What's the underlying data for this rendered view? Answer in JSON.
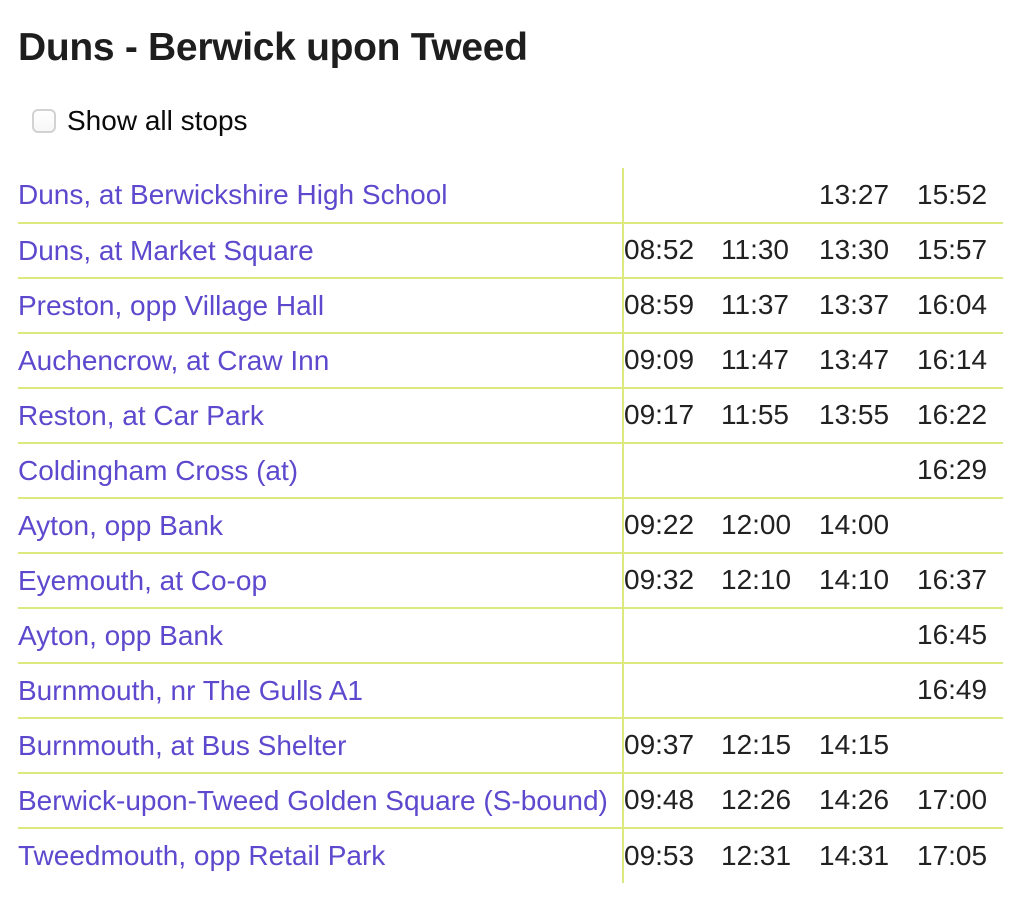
{
  "page": {
    "title": "Duns - Berwick upon Tweed"
  },
  "controls": {
    "show_all_stops_label": "Show all stops",
    "show_all_stops_checked": false
  },
  "colors": {
    "link": "#5c49cd",
    "divider": "#dce97f",
    "text": "#212121",
    "title": "#1e1e1e"
  },
  "timetable": {
    "columns": 4,
    "rows": [
      {
        "stop": "Duns, at Berwickshire High School",
        "times": [
          "",
          "",
          "13:27",
          "15:52"
        ]
      },
      {
        "stop": "Duns, at Market Square",
        "times": [
          "08:52",
          "11:30",
          "13:30",
          "15:57"
        ]
      },
      {
        "stop": "Preston, opp Village Hall",
        "times": [
          "08:59",
          "11:37",
          "13:37",
          "16:04"
        ]
      },
      {
        "stop": "Auchencrow, at Craw Inn",
        "times": [
          "09:09",
          "11:47",
          "13:47",
          "16:14"
        ]
      },
      {
        "stop": "Reston, at Car Park",
        "times": [
          "09:17",
          "11:55",
          "13:55",
          "16:22"
        ]
      },
      {
        "stop": "Coldingham Cross (at)",
        "times": [
          "",
          "",
          "",
          "16:29"
        ]
      },
      {
        "stop": "Ayton, opp Bank",
        "times": [
          "09:22",
          "12:00",
          "14:00",
          ""
        ]
      },
      {
        "stop": "Eyemouth, at Co-op",
        "times": [
          "09:32",
          "12:10",
          "14:10",
          "16:37"
        ]
      },
      {
        "stop": "Ayton, opp Bank",
        "times": [
          "",
          "",
          "",
          "16:45"
        ]
      },
      {
        "stop": "Burnmouth, nr The Gulls A1",
        "times": [
          "",
          "",
          "",
          "16:49"
        ]
      },
      {
        "stop": "Burnmouth, at Bus Shelter",
        "times": [
          "09:37",
          "12:15",
          "14:15",
          ""
        ]
      },
      {
        "stop": "Berwick-upon-Tweed Golden Square (S-bound)",
        "times": [
          "09:48",
          "12:26",
          "14:26",
          "17:00"
        ]
      },
      {
        "stop": "Tweedmouth, opp Retail Park",
        "times": [
          "09:53",
          "12:31",
          "14:31",
          "17:05"
        ]
      }
    ]
  }
}
